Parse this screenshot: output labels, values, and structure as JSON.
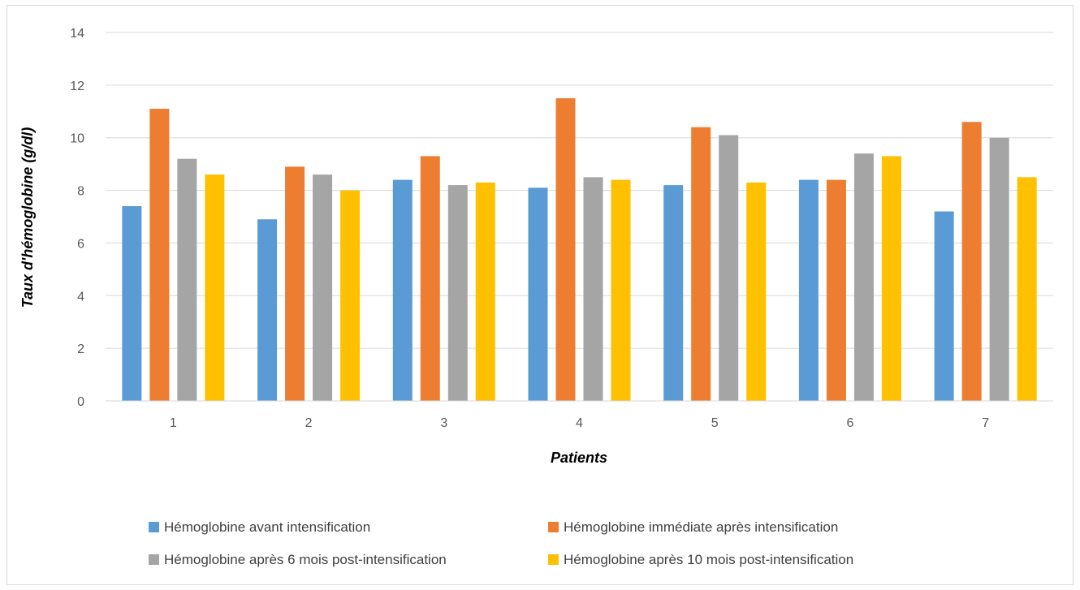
{
  "chart_data": {
    "type": "bar",
    "title": "",
    "xlabel": "Patients",
    "ylabel": "Taux d'hémoglobine (g/dl)",
    "categories": [
      "1",
      "2",
      "3",
      "4",
      "5",
      "6",
      "7"
    ],
    "ylim": [
      0,
      14
    ],
    "yticks": [
      0,
      2,
      4,
      6,
      8,
      10,
      12,
      14
    ],
    "grid": true,
    "legend_position": "bottom",
    "series": [
      {
        "name": "Hémoglobine avant intensification",
        "color": "#5B9BD5",
        "values": [
          7.4,
          6.9,
          8.4,
          8.1,
          8.2,
          8.4,
          7.2
        ]
      },
      {
        "name": "Hémoglobine immédiate après intensification",
        "color": "#ED7D31",
        "values": [
          11.1,
          8.9,
          9.3,
          11.5,
          10.4,
          8.4,
          10.6
        ]
      },
      {
        "name": "Hémoglobine après 6 mois post-intensification",
        "color": "#A5A5A5",
        "values": [
          9.2,
          8.6,
          8.2,
          8.5,
          10.1,
          9.4,
          10.0
        ]
      },
      {
        "name": "Hémoglobine après 10 mois post-intensification",
        "color": "#FFC000",
        "values": [
          8.6,
          8.0,
          8.3,
          8.4,
          8.3,
          9.3,
          8.5
        ]
      }
    ]
  }
}
